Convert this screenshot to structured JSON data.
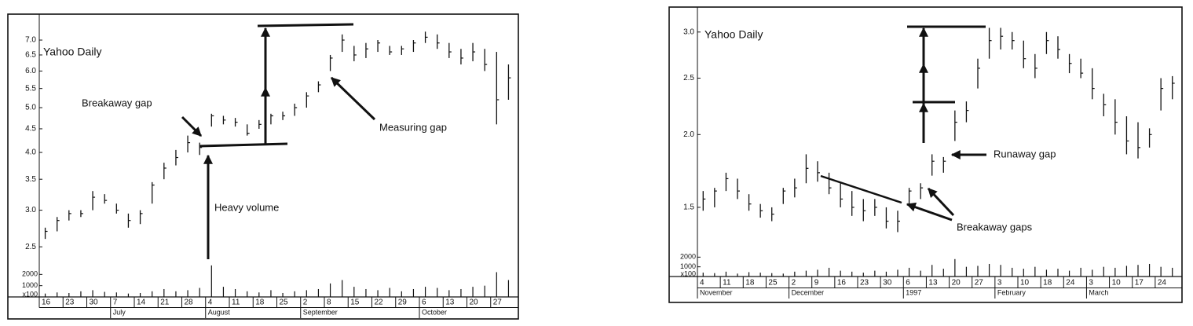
{
  "chart_data": [
    {
      "type": "ohlc",
      "title": "Yahoo Daily",
      "log_scale": true,
      "grid": false,
      "annotations": [
        "Breakaway gap",
        "Measuring gap",
        "Heavy volume"
      ],
      "categories": [
        "16",
        null,
        "23",
        null,
        "30",
        null,
        "7",
        null,
        "14",
        null,
        "21",
        null,
        "28",
        null,
        "4",
        null,
        "11",
        null,
        "18",
        null,
        "25",
        null,
        "2",
        null,
        "8",
        null,
        "15",
        null,
        "22",
        null,
        "29",
        null,
        "6",
        null,
        "13",
        null,
        "20",
        null,
        "27",
        null
      ],
      "months": [
        null,
        null,
        null,
        null,
        null,
        null,
        "July",
        null,
        null,
        null,
        null,
        null,
        null,
        null,
        "August",
        null,
        null,
        null,
        null,
        null,
        null,
        null,
        "September",
        null,
        null,
        null,
        null,
        null,
        null,
        null,
        null,
        null,
        "October",
        null,
        null,
        null,
        null,
        null,
        null,
        null
      ],
      "high": [
        2.75,
        2.9,
        3.0,
        3.0,
        3.3,
        3.25,
        3.1,
        2.95,
        3.0,
        3.45,
        3.8,
        4.05,
        4.35,
        4.2,
        4.85,
        4.8,
        4.75,
        4.6,
        4.7,
        4.85,
        4.9,
        5.1,
        5.4,
        5.7,
        6.5,
        7.2,
        6.8,
        6.9,
        7.0,
        6.8,
        6.8,
        7.0,
        7.3,
        7.2,
        6.9,
        6.7,
        6.9,
        6.7,
        6.6,
        6.2
      ],
      "low": [
        2.6,
        2.7,
        2.85,
        2.9,
        3.0,
        3.1,
        2.95,
        2.75,
        2.8,
        3.1,
        3.5,
        3.75,
        4.0,
        3.95,
        4.55,
        4.6,
        4.55,
        4.35,
        4.5,
        4.6,
        4.7,
        4.8,
        5.0,
        5.4,
        6.0,
        6.6,
        6.3,
        6.4,
        6.6,
        6.5,
        6.5,
        6.6,
        6.9,
        6.7,
        6.4,
        6.2,
        6.3,
        6.0,
        4.6,
        5.2
      ],
      "close": [
        2.7,
        2.85,
        2.95,
        2.95,
        3.2,
        3.15,
        3.0,
        2.85,
        2.95,
        3.4,
        3.7,
        3.9,
        4.2,
        4.1,
        4.8,
        4.7,
        4.65,
        4.4,
        4.6,
        4.8,
        4.8,
        5.0,
        5.3,
        5.6,
        6.4,
        7.0,
        6.5,
        6.7,
        6.9,
        6.6,
        6.7,
        6.9,
        7.1,
        6.9,
        6.6,
        6.4,
        6.6,
        6.2,
        5.2,
        5.8
      ],
      "volume": [
        300,
        400,
        350,
        500,
        600,
        450,
        400,
        300,
        350,
        500,
        700,
        500,
        600,
        800,
        2800,
        900,
        700,
        500,
        400,
        600,
        350,
        500,
        600,
        700,
        1200,
        1500,
        900,
        700,
        600,
        800,
        500,
        700,
        900,
        800,
        600,
        700,
        900,
        1000,
        2200,
        1500
      ],
      "ylim": [
        2.35,
        7.6
      ],
      "yticks": [
        2.5,
        {
          "value": 3,
          "label": "3.0"
        },
        3.5,
        {
          "value": 4,
          "label": "4.0"
        },
        4.5,
        {
          "value": 5,
          "label": "5.0"
        },
        5.5,
        {
          "value": 6,
          "label": "6.0"
        },
        6.5,
        {
          "value": 7,
          "label": "7.0"
        }
      ],
      "y2lim": [
        0,
        3000
      ],
      "y2ticks": [
        1000,
        2000
      ],
      "volume_unit": "x100"
    },
    {
      "type": "ohlc",
      "title": "Yahoo Daily",
      "log_scale": true,
      "grid": false,
      "annotations": [
        "Runaway gap",
        "Breakaway gaps"
      ],
      "categories": [
        "4",
        null,
        "11",
        null,
        "18",
        null,
        "25",
        null,
        "2",
        null,
        "9",
        null,
        "16",
        null,
        "23",
        null,
        "30",
        null,
        "6",
        null,
        "13",
        null,
        "20",
        null,
        "27",
        null,
        "3",
        null,
        "10",
        null,
        "18",
        null,
        "24",
        null,
        "3",
        null,
        "10",
        null,
        "17",
        null,
        "24",
        null
      ],
      "months": [
        "November",
        null,
        null,
        null,
        null,
        null,
        null,
        null,
        "December",
        null,
        null,
        null,
        null,
        null,
        null,
        null,
        null,
        null,
        "1997",
        null,
        null,
        null,
        null,
        null,
        null,
        null,
        "February",
        null,
        null,
        null,
        null,
        null,
        null,
        null,
        "March",
        null,
        null,
        null,
        null,
        null,
        null,
        null
      ],
      "high": [
        1.6,
        1.62,
        1.72,
        1.68,
        1.58,
        1.52,
        1.5,
        1.62,
        1.68,
        1.85,
        1.8,
        1.72,
        1.65,
        1.6,
        1.55,
        1.55,
        1.5,
        1.48,
        1.62,
        1.65,
        1.85,
        1.83,
        2.2,
        2.28,
        2.7,
        3.05,
        3.05,
        3.0,
        2.9,
        2.75,
        3.0,
        2.95,
        2.75,
        2.7,
        2.6,
        2.35,
        2.3,
        2.15,
        2.1,
        2.05,
        2.5,
        2.52
      ],
      "low": [
        1.48,
        1.5,
        1.6,
        1.55,
        1.48,
        1.44,
        1.42,
        1.52,
        1.56,
        1.65,
        1.66,
        1.58,
        1.5,
        1.45,
        1.42,
        1.45,
        1.38,
        1.36,
        1.52,
        1.55,
        1.7,
        1.72,
        1.95,
        2.1,
        2.4,
        2.7,
        2.8,
        2.8,
        2.6,
        2.5,
        2.75,
        2.7,
        2.55,
        2.5,
        2.3,
        2.15,
        2.0,
        1.85,
        1.82,
        1.9,
        2.2,
        2.3
      ],
      "close": [
        1.55,
        1.6,
        1.68,
        1.6,
        1.52,
        1.48,
        1.46,
        1.6,
        1.62,
        1.75,
        1.72,
        1.62,
        1.55,
        1.5,
        1.48,
        1.5,
        1.42,
        1.42,
        1.6,
        1.62,
        1.8,
        1.8,
        2.1,
        2.2,
        2.6,
        2.9,
        2.95,
        2.9,
        2.7,
        2.6,
        2.9,
        2.8,
        2.65,
        2.55,
        2.4,
        2.25,
        2.1,
        1.95,
        1.9,
        2.0,
        2.4,
        2.45
      ],
      "volume": [
        400,
        350,
        500,
        300,
        450,
        400,
        350,
        300,
        500,
        600,
        700,
        900,
        600,
        500,
        400,
        600,
        500,
        700,
        900,
        600,
        1200,
        800,
        1800,
        1000,
        1100,
        1300,
        1200,
        900,
        800,
        1000,
        700,
        800,
        600,
        900,
        700,
        1000,
        900,
        1100,
        1200,
        1300,
        1000,
        900
      ],
      "ylim": [
        1.3,
        3.2
      ],
      "yticks": [
        {
          "value": 1.5,
          "label": "1.5"
        },
        {
          "value": 2,
          "label": "2.0"
        },
        {
          "value": 2.5,
          "label": "2.5"
        },
        {
          "value": 3,
          "label": "3.0"
        }
      ],
      "y2lim": [
        0,
        3000
      ],
      "y2ticks": [
        1000,
        2000
      ],
      "volume_unit": "x100"
    }
  ]
}
